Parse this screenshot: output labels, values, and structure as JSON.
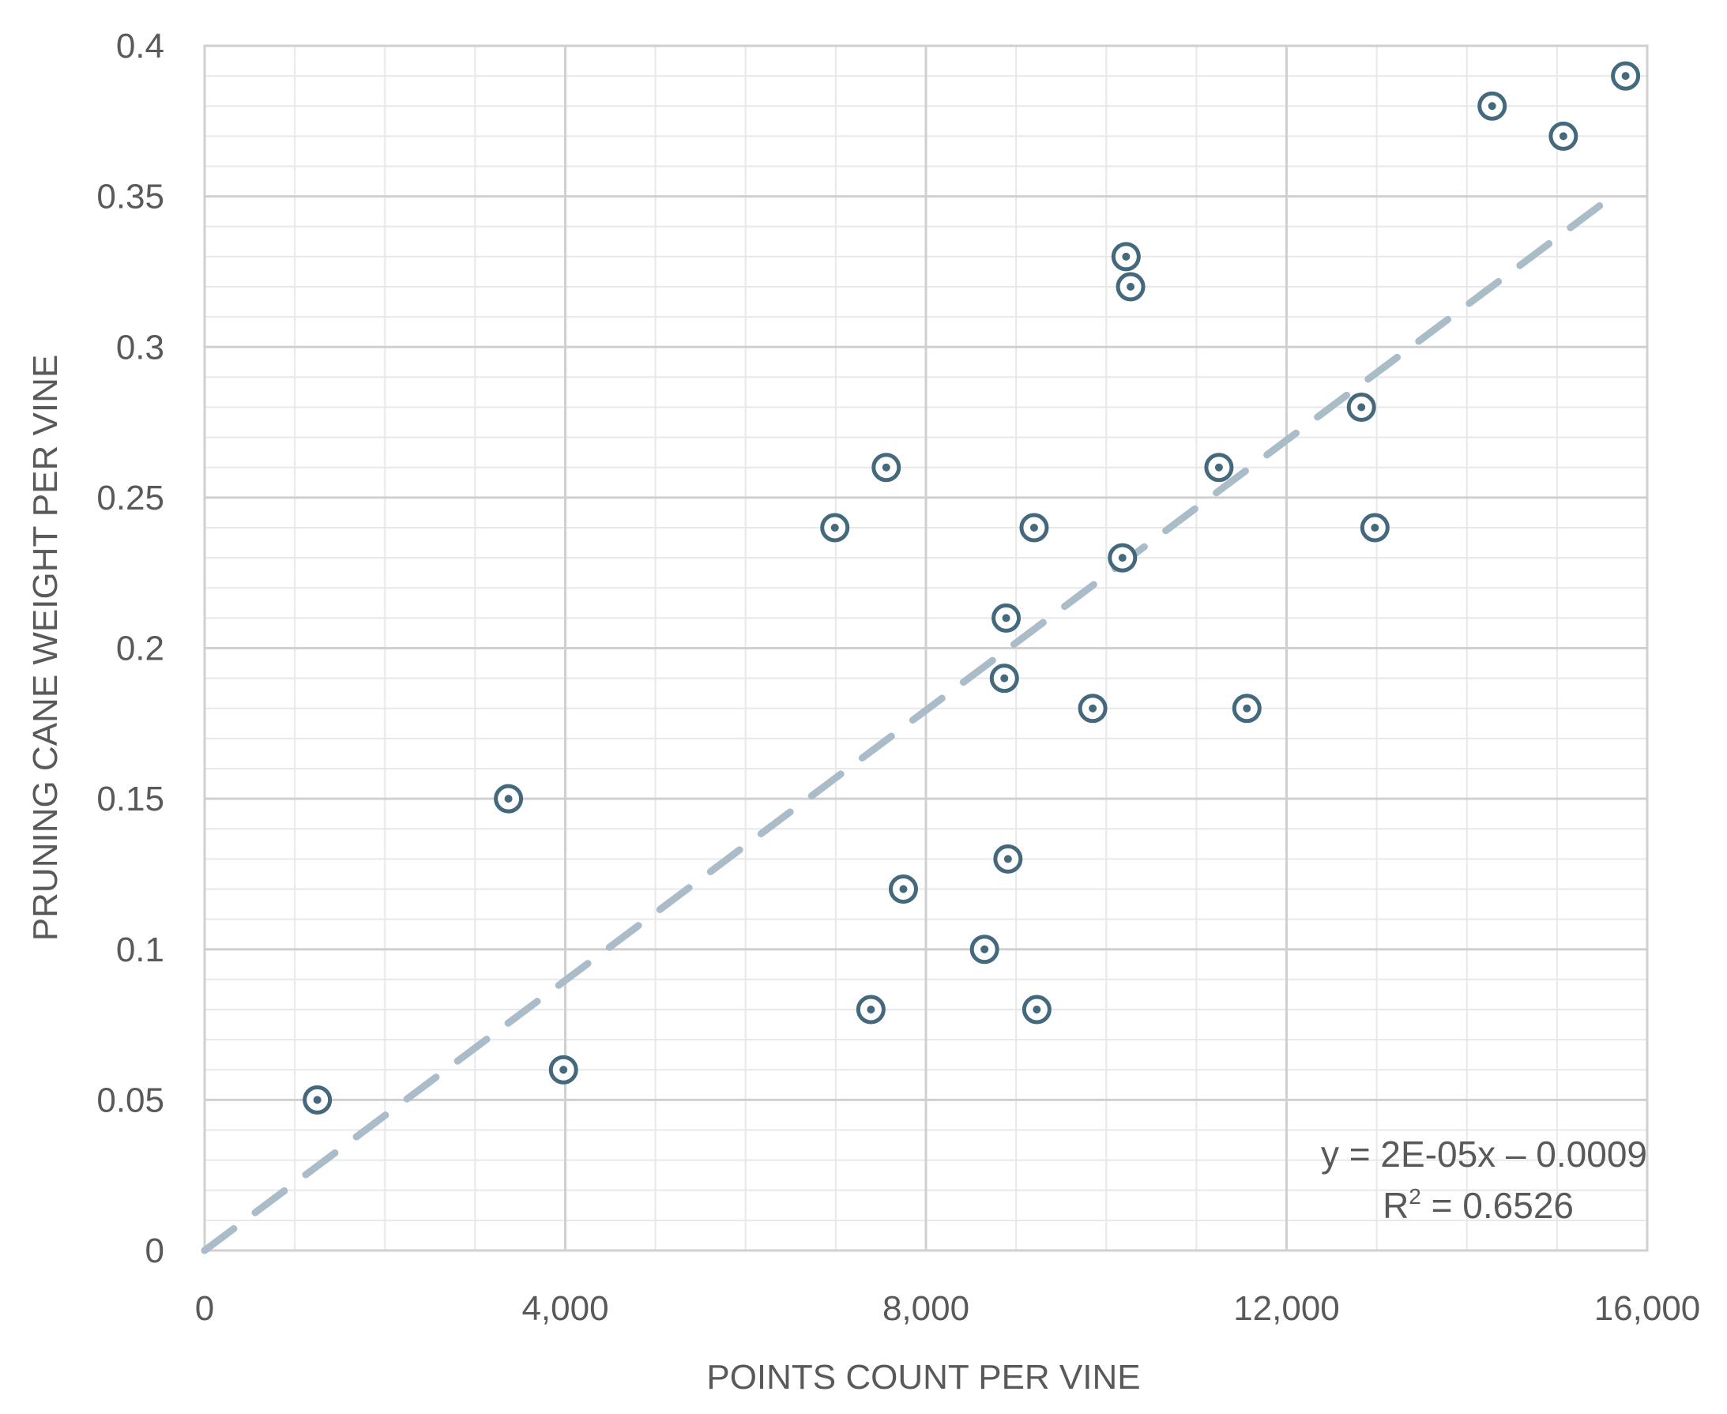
{
  "chart_data": {
    "type": "scatter",
    "title": "",
    "xlabel": "POINTS COUNT PER VINE",
    "ylabel": "PRUNING CANE WEIGHT PER VINE",
    "xlim": [
      0,
      16000
    ],
    "ylim": [
      0,
      0.4
    ],
    "x_ticks": [
      0,
      4000,
      8000,
      12000,
      16000
    ],
    "x_tick_labels": [
      "0",
      "4,000",
      "8,000",
      "12,000",
      "16,000"
    ],
    "y_ticks": [
      0,
      0.05,
      0.1,
      0.15,
      0.2,
      0.25,
      0.3,
      0.35,
      0.4
    ],
    "y_tick_labels": [
      "0",
      "0.05",
      "0.1",
      "0.15",
      "0.2",
      "0.25",
      "0.3",
      "0.35",
      "0.4"
    ],
    "grid": true,
    "minor_grid": true,
    "legend": "none",
    "colors": {
      "marker": "#44697d",
      "trendline": "#a9bcc8",
      "major_grid": "#d0d0d0",
      "minor_grid": "#e8e8e8",
      "text": "#595959"
    },
    "series": [
      {
        "marker": "ring-dot",
        "points": [
          {
            "x": 1250,
            "y": 0.05
          },
          {
            "x": 3370,
            "y": 0.15
          },
          {
            "x": 3980,
            "y": 0.06
          },
          {
            "x": 6990,
            "y": 0.24
          },
          {
            "x": 7390,
            "y": 0.08
          },
          {
            "x": 7560,
            "y": 0.26
          },
          {
            "x": 7750,
            "y": 0.12
          },
          {
            "x": 8650,
            "y": 0.1
          },
          {
            "x": 8870,
            "y": 0.19
          },
          {
            "x": 8890,
            "y": 0.21
          },
          {
            "x": 8910,
            "y": 0.13
          },
          {
            "x": 9200,
            "y": 0.24
          },
          {
            "x": 9230,
            "y": 0.08
          },
          {
            "x": 9850,
            "y": 0.18
          },
          {
            "x": 10180,
            "y": 0.23
          },
          {
            "x": 10220,
            "y": 0.33
          },
          {
            "x": 10270,
            "y": 0.32
          },
          {
            "x": 11250,
            "y": 0.26
          },
          {
            "x": 11560,
            "y": 0.18
          },
          {
            "x": 12830,
            "y": 0.28
          },
          {
            "x": 12980,
            "y": 0.24
          },
          {
            "x": 14280,
            "y": 0.38
          },
          {
            "x": 15070,
            "y": 0.37
          },
          {
            "x": 15760,
            "y": 0.39
          }
        ]
      }
    ],
    "trendline": {
      "type": "linear",
      "style": "dashed",
      "x_range": [
        0,
        15700
      ],
      "y_range": [
        0,
        0.352
      ],
      "equation": "y = 2E-05x –  0.0009",
      "r2_prefix": "R",
      "r2_sup": "2",
      "r2_value": " = 0.6526"
    }
  }
}
